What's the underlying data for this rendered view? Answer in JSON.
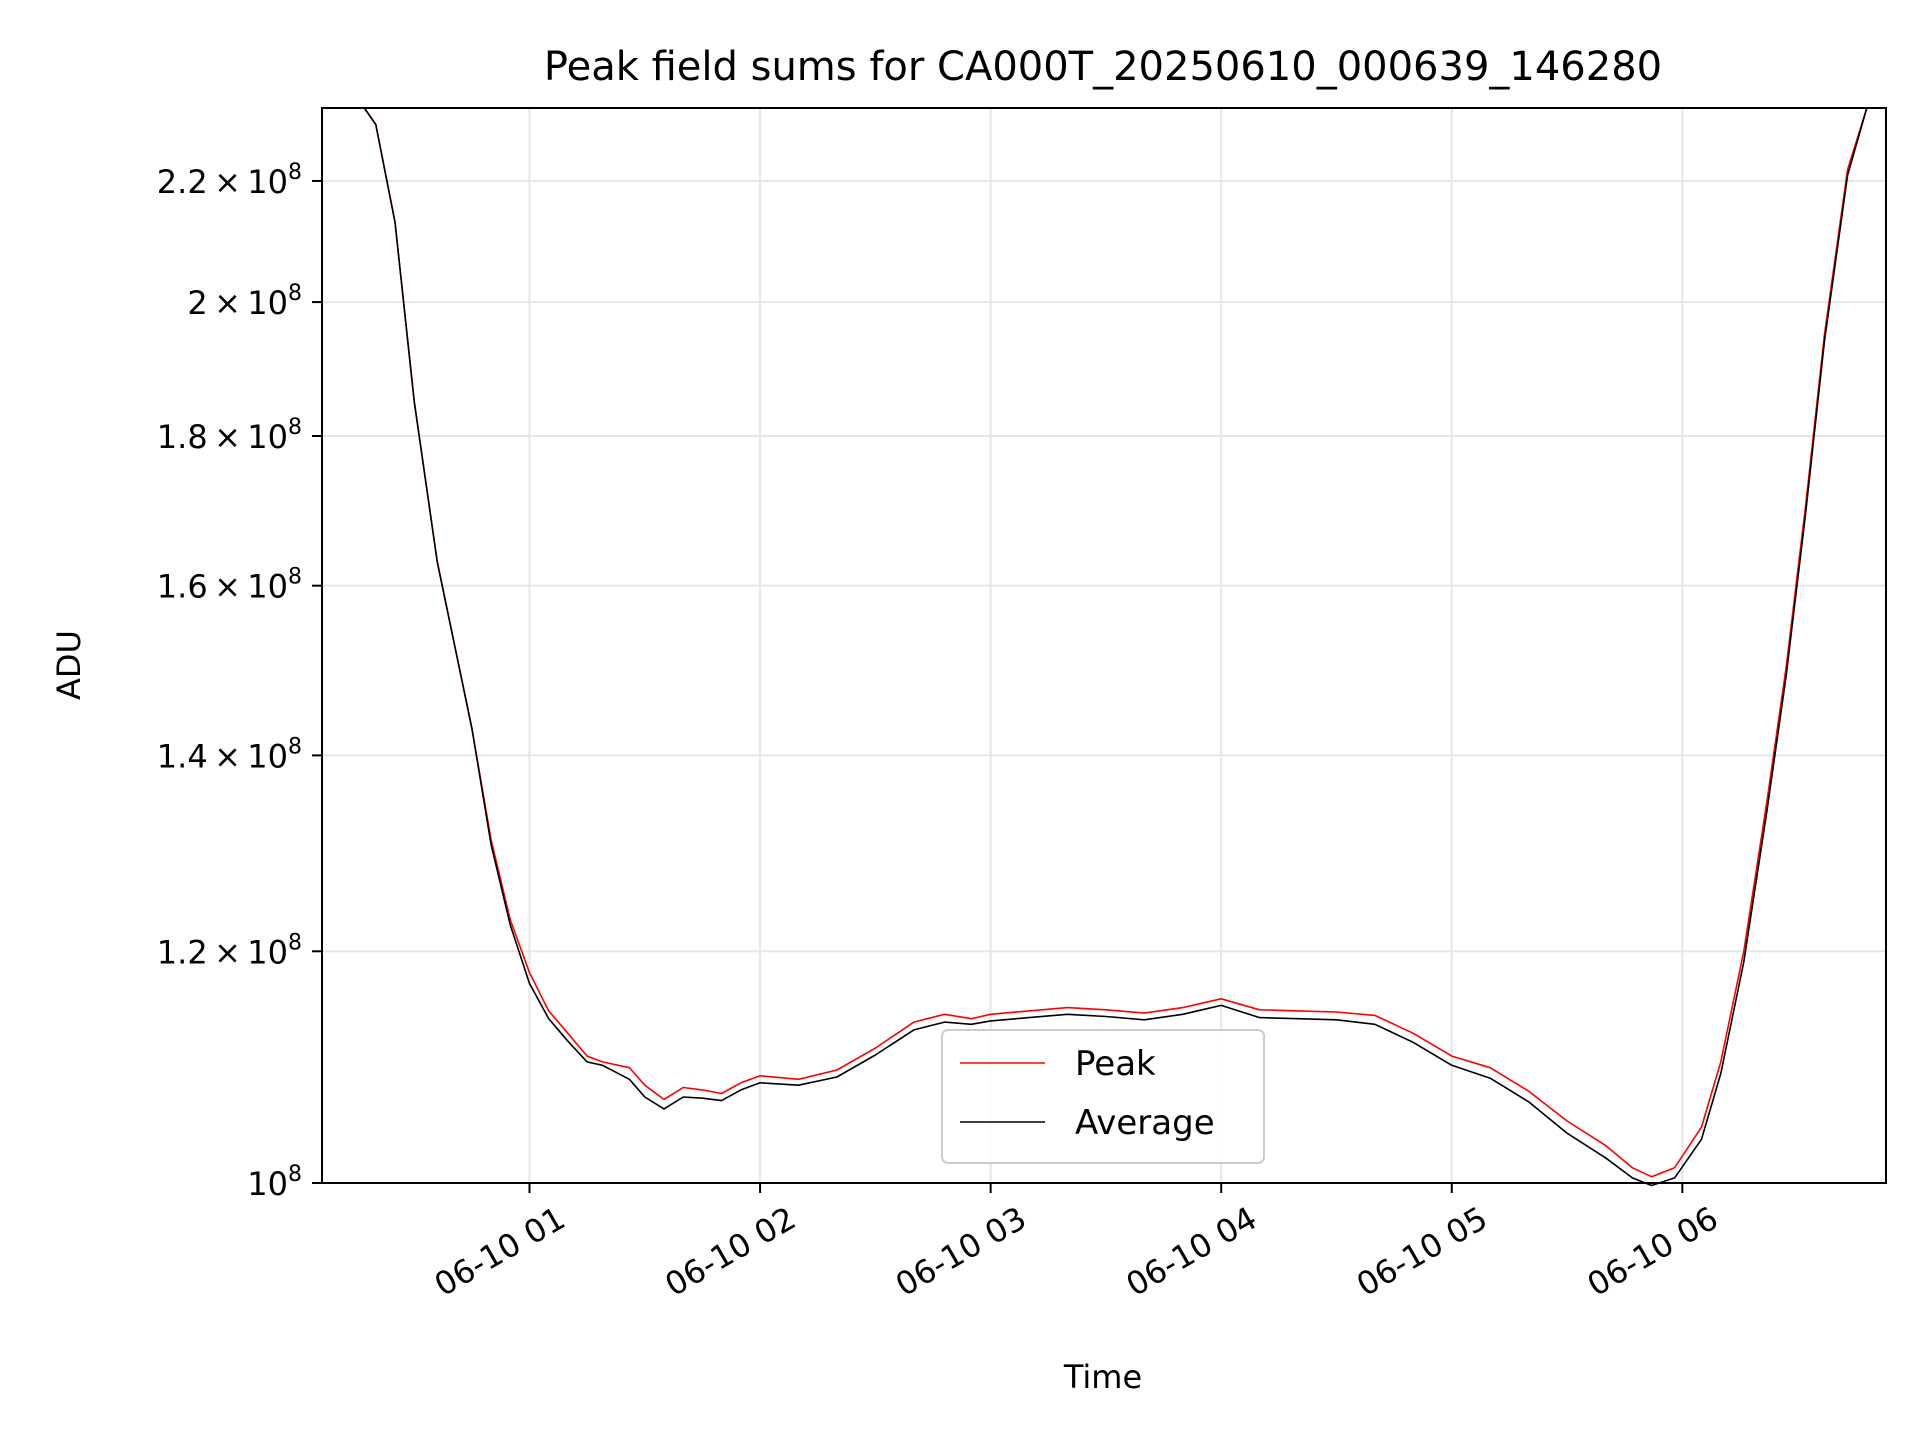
{
  "chart_data": {
    "type": "line",
    "title": "Peak field sums for CA000T_20250610_000639_146280",
    "xlabel": "Time",
    "ylabel": "ADU",
    "y_scale": "log",
    "grid": true,
    "legend_position": "bottom-center",
    "x_ticks": [
      "06-10 01",
      "06-10 02",
      "06-10 03",
      "06-10 04",
      "06-10 05",
      "06-10 06"
    ],
    "y_ticks": [
      {
        "value": 100000000,
        "mantissa": "",
        "exponent": "8"
      },
      {
        "value": 120000000,
        "mantissa": "1.2",
        "exponent": "8"
      },
      {
        "value": 140000000,
        "mantissa": "1.4",
        "exponent": "8"
      },
      {
        "value": 160000000,
        "mantissa": "1.6",
        "exponent": "8"
      },
      {
        "value": 180000000,
        "mantissa": "1.8",
        "exponent": "8"
      },
      {
        "value": 200000000,
        "mantissa": "2",
        "exponent": "8"
      },
      {
        "value": 220000000,
        "mantissa": "2.2",
        "exponent": "8"
      }
    ],
    "xlim": [
      "06-10 00:06",
      "06-10 06:53"
    ],
    "ylim": [
      100000000,
      233000000
    ],
    "x": [
      "06-10 00:06",
      "06-10 00:17",
      "06-10 00:20",
      "06-10 00:25",
      "06-10 00:30",
      "06-10 00:36",
      "06-10 00:45",
      "06-10 00:50",
      "06-10 00:55",
      "06-10 01:00",
      "06-10 01:05",
      "06-10 01:10",
      "06-10 01:15",
      "06-10 01:19",
      "06-10 01:26",
      "06-10 01:30",
      "06-10 01:35",
      "06-10 01:40",
      "06-10 01:45",
      "06-10 01:50",
      "06-10 01:55",
      "06-10 02:00",
      "06-10 02:10",
      "06-10 02:20",
      "06-10 02:30",
      "06-10 02:40",
      "06-10 02:48",
      "06-10 02:55",
      "06-10 03:00",
      "06-10 03:10",
      "06-10 03:20",
      "06-10 03:30",
      "06-10 03:40",
      "06-10 03:50",
      "06-10 03:55",
      "06-10 04:00",
      "06-10 04:10",
      "06-10 04:20",
      "06-10 04:30",
      "06-10 04:40",
      "06-10 04:50",
      "06-10 05:00",
      "06-10 05:10",
      "06-10 05:20",
      "06-10 05:30",
      "06-10 05:40",
      "06-10 05:47",
      "06-10 05:52",
      "06-10 05:58",
      "06-10 06:05",
      "06-10 06:10",
      "06-10 06:16",
      "06-10 06:22",
      "06-10 06:27",
      "06-10 06:32",
      "06-10 06:37",
      "06-10 06:43",
      "06-10 06:48",
      "06-10 06:53"
    ],
    "series": [
      {
        "name": "Peak",
        "color": "#ff0000",
        "values": [
          233000000,
          233000000,
          230000000,
          213000000,
          185000000,
          163000000,
          143000000,
          131000000,
          123000000,
          118000000,
          114500000,
          112500000,
          110500000,
          110000000,
          109500000,
          108000000,
          106800000,
          107800000,
          107600000,
          107300000,
          108200000,
          108800000,
          108500000,
          109300000,
          111200000,
          113500000,
          114200000,
          113800000,
          114200000,
          114500000,
          114800000,
          114600000,
          114300000,
          114800000,
          115200000,
          115600000,
          114600000,
          114500000,
          114400000,
          114100000,
          112500000,
          110500000,
          109500000,
          107500000,
          105000000,
          103000000,
          101200000,
          100500000,
          101200000,
          104500000,
          110000000,
          120000000,
          135000000,
          150000000,
          170000000,
          195000000,
          222000000,
          233000000,
          233000000
        ]
      },
      {
        "name": "Average",
        "color": "#000000",
        "values": [
          233000000,
          233000000,
          230000000,
          213000000,
          185000000,
          163000000,
          143000000,
          130500000,
          122500000,
          117000000,
          113800000,
          111800000,
          110000000,
          109700000,
          108500000,
          107000000,
          106000000,
          107000000,
          106900000,
          106700000,
          107600000,
          108200000,
          108000000,
          108700000,
          110600000,
          112800000,
          113500000,
          113300000,
          113600000,
          113900000,
          114200000,
          114000000,
          113700000,
          114200000,
          114600000,
          115000000,
          113900000,
          113800000,
          113700000,
          113300000,
          111700000,
          109700000,
          108600000,
          106600000,
          104000000,
          102000000,
          100400000,
          99800000,
          100400000,
          103500000,
          109000000,
          119000000,
          134000000,
          149000000,
          169000000,
          194000000,
          221000000,
          233000000,
          233000000
        ]
      }
    ]
  },
  "legend": {
    "peak_label": "Peak",
    "average_label": "Average"
  }
}
